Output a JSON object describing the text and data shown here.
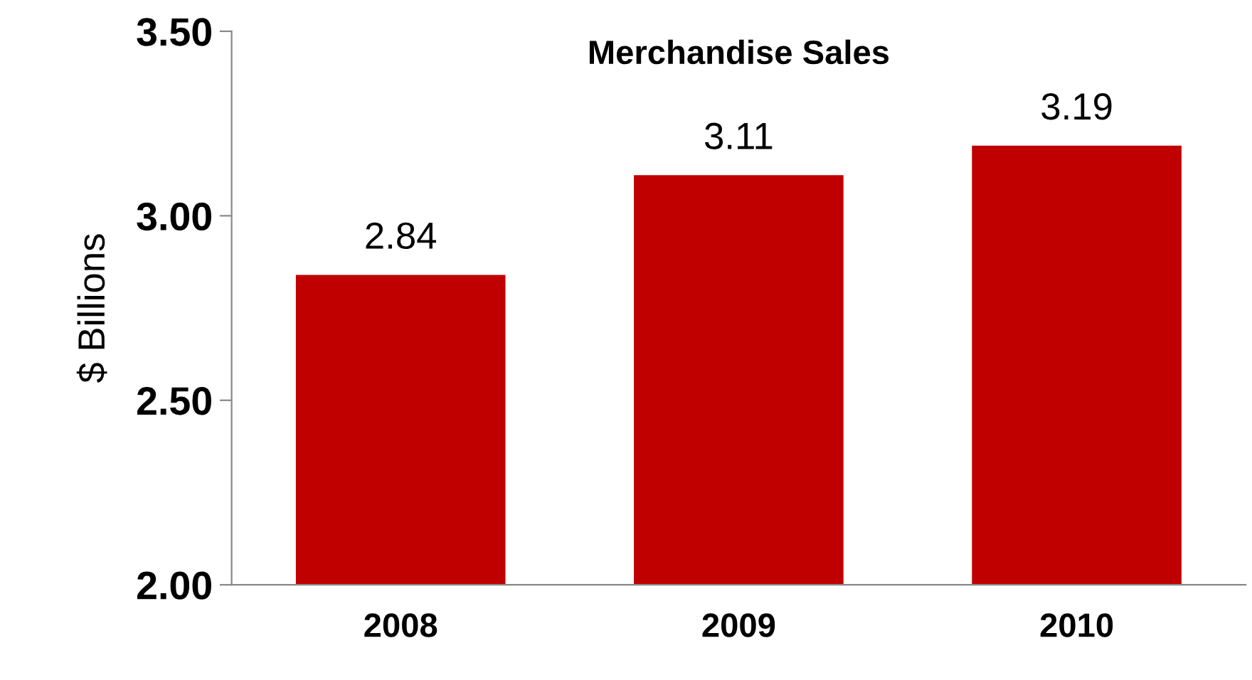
{
  "chart_data": {
    "type": "bar",
    "title": "Merchandise Sales",
    "ylabel": "$ Billions",
    "categories": [
      "2008",
      "2009",
      "2010"
    ],
    "values": [
      2.84,
      3.11,
      3.19
    ],
    "color": "#c00000",
    "ylim": [
      2.0,
      3.5
    ],
    "yticks": [
      {
        "value": 2.0,
        "label": "2.00"
      },
      {
        "value": 2.5,
        "label": "2.50"
      },
      {
        "value": 3.0,
        "label": "3.00"
      },
      {
        "value": 3.5,
        "label": "3.50"
      }
    ],
    "data_labels": true,
    "grid": false,
    "legend": false
  }
}
